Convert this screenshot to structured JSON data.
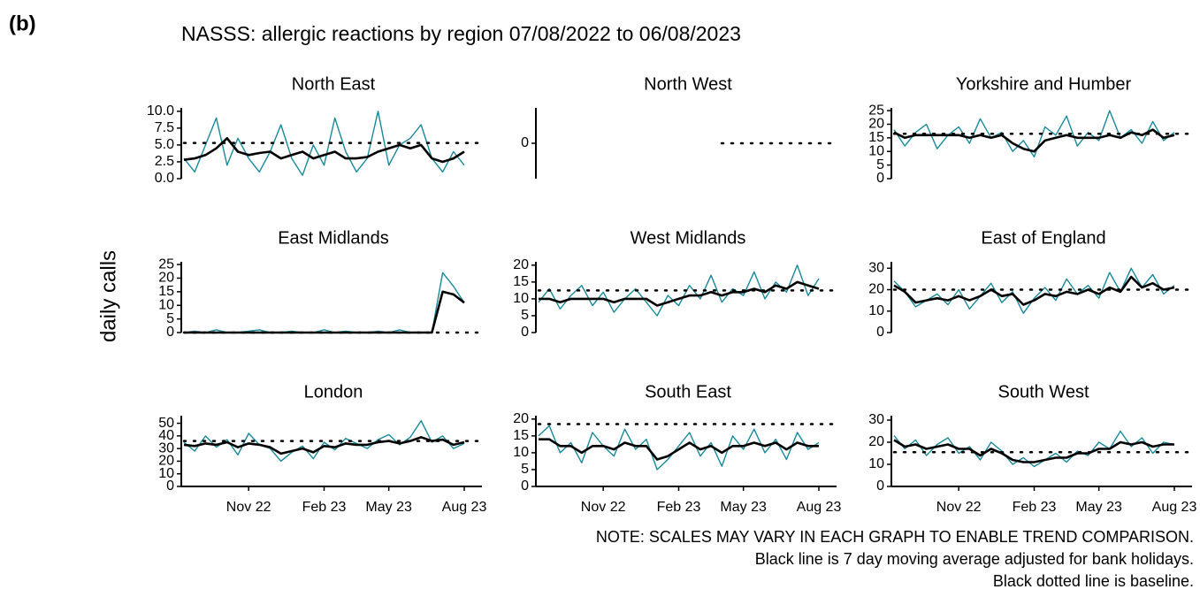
{
  "chart_data": {
    "type": "line",
    "label": "(b)",
    "title": "NASSS: allergic reactions by region 07/08/2022 to 06/08/2023",
    "ylabel": "daily calls",
    "categories": [
      null,
      null,
      null,
      null,
      null,
      null,
      "Nov 22",
      null,
      null,
      null,
      null,
      null,
      null,
      "Feb 23",
      null,
      null,
      null,
      null,
      null,
      "May 23",
      null,
      null,
      null,
      null,
      null,
      null,
      "Aug 23"
    ],
    "notes": [
      "NOTE: SCALES MAY VARY IN EACH GRAPH TO ENABLE TREND COMPARISON.",
      "Black line is 7 day moving average adjusted for bank holidays.",
      "Black dotted line is baseline."
    ],
    "panels": [
      {
        "title": "North East",
        "ylim": [
          0,
          10.5
        ],
        "yticks": [
          {
            "value": 0,
            "label": "0.0"
          },
          2.5,
          {
            "value": 5,
            "label": "5.0"
          },
          7.5,
          {
            "value": 10,
            "label": "10.0"
          }
        ],
        "baseline": 5.3,
        "series": [
          {
            "color": "#17899a",
            "values": [
              3,
              1,
              5,
              9,
              2,
              6,
              3,
              1,
              4,
              8,
              3,
              0.5,
              5,
              2,
              9,
              4,
              1,
              3,
              10,
              2,
              5,
              6,
              8,
              3,
              1,
              4,
              2
            ]
          },
          {
            "color": "#000000",
            "values": [
              2.8,
              3,
              3.5,
              4.5,
              6,
              4,
              3.5,
              3.8,
              4,
              3,
              3.5,
              4,
              3,
              3.5,
              4,
              3,
              3,
              3.2,
              4,
              4.5,
              5,
              4.5,
              5,
              3,
              2.5,
              3,
              4
            ]
          }
        ]
      },
      {
        "title": "North West",
        "ylim": [
          -1,
          1
        ],
        "yticks": [
          0
        ],
        "baseline": 0,
        "series": []
      },
      {
        "title": "Yorkshire and Humber",
        "ylim": [
          0,
          26
        ],
        "yticks": [
          0,
          5,
          10,
          15,
          20,
          25
        ],
        "baseline": 16.5,
        "series": [
          {
            "color": "#17899a",
            "values": [
              18,
              12,
              17,
              20,
              11,
              16,
              19,
              13,
              22,
              15,
              17,
              10,
              14,
              8,
              19,
              16,
              23,
              12,
              17,
              14,
              25,
              15,
              18,
              13,
              21,
              14,
              17
            ]
          },
          {
            "color": "#000000",
            "values": [
              17,
              15,
              16,
              16,
              16,
              16,
              16,
              15,
              16,
              15,
              16,
              13,
              11,
              10,
              14,
              15,
              16,
              15,
              15,
              15,
              16,
              15,
              17,
              16,
              18,
              15,
              16
            ]
          }
        ]
      },
      {
        "title": "East Midlands",
        "ylim": [
          0,
          26
        ],
        "yticks": [
          0,
          5,
          10,
          15,
          20,
          25
        ],
        "baseline": 0,
        "series": [
          {
            "color": "#17899a",
            "values": [
              0,
              0.5,
              0,
              1,
              0,
              0,
              0.5,
              1,
              0,
              0,
              0.5,
              0,
              0,
              1,
              0,
              0.5,
              0,
              0,
              0.5,
              0,
              1,
              0,
              0,
              0,
              22,
              17,
              11
            ]
          },
          {
            "color": "#000000",
            "values": [
              0,
              0,
              0,
              0,
              0,
              0,
              0,
              0,
              0,
              0,
              0,
              0,
              0,
              0,
              0,
              0,
              0,
              0,
              0,
              0,
              0,
              0,
              0,
              0,
              15,
              14,
              11
            ]
          }
        ]
      },
      {
        "title": "West Midlands",
        "ylim": [
          0,
          21
        ],
        "yticks": [
          0,
          5,
          10,
          15,
          20
        ],
        "baseline": 12.5,
        "series": [
          {
            "color": "#17899a",
            "values": [
              9,
              13,
              7,
              11,
              14,
              8,
              12,
              6,
              10,
              13,
              9,
              5,
              11,
              8,
              14,
              10,
              17,
              9,
              13,
              11,
              18,
              10,
              15,
              12,
              20,
              11,
              16
            ]
          },
          {
            "color": "#000000",
            "values": [
              10,
              10,
              9,
              10,
              10,
              10,
              10,
              9,
              10,
              10,
              10,
              8,
              9,
              10,
              11,
              11,
              12,
              11,
              12,
              12,
              13,
              12,
              14,
              13,
              15,
              14,
              13
            ]
          }
        ]
      },
      {
        "title": "East of England",
        "ylim": [
          0,
          33
        ],
        "yticks": [
          0,
          10,
          20,
          30
        ],
        "baseline": 20,
        "series": [
          {
            "color": "#17899a",
            "values": [
              24,
              19,
              12,
              15,
              18,
              13,
              20,
              11,
              17,
              23,
              14,
              19,
              9,
              16,
              21,
              15,
              25,
              18,
              22,
              16,
              28,
              19,
              30,
              21,
              27,
              18,
              22
            ]
          },
          {
            "color": "#000000",
            "values": [
              22,
              19,
              14,
              15,
              16,
              15,
              17,
              15,
              17,
              20,
              17,
              18,
              13,
              15,
              18,
              17,
              19,
              18,
              20,
              18,
              21,
              19,
              26,
              21,
              23,
              20,
              21
            ]
          }
        ]
      },
      {
        "title": "London",
        "ylim": [
          0,
          56
        ],
        "yticks": [
          0,
          10,
          20,
          30,
          40,
          50
        ],
        "baseline": 36,
        "series": [
          {
            "color": "#17899a",
            "values": [
              35,
              28,
              40,
              31,
              37,
              25,
              42,
              33,
              30,
              20,
              27,
              32,
              22,
              35,
              29,
              38,
              34,
              30,
              37,
              41,
              33,
              39,
              52,
              35,
              40,
              30,
              34
            ]
          },
          {
            "color": "#000000",
            "values": [
              33,
              32,
              34,
              33,
              35,
              31,
              34,
              33,
              31,
              26,
              28,
              30,
              27,
              32,
              31,
              34,
              33,
              33,
              35,
              36,
              34,
              36,
              39,
              36,
              37,
              33,
              35
            ]
          }
        ]
      },
      {
        "title": "South East",
        "ylim": [
          0,
          21
        ],
        "yticks": [
          0,
          5,
          10,
          15,
          20
        ],
        "baseline": 18.5,
        "series": [
          {
            "color": "#17899a",
            "values": [
              15,
              18,
              10,
              13,
              7,
              16,
              12,
              9,
              17,
              11,
              14,
              5,
              8,
              12,
              16,
              9,
              13,
              6,
              15,
              11,
              17,
              10,
              14,
              8,
              16,
              11,
              13
            ]
          },
          {
            "color": "#000000",
            "values": [
              14,
              14,
              12,
              12,
              10,
              12,
              12,
              11,
              13,
              12,
              12,
              8,
              9,
              11,
              13,
              11,
              12,
              10,
              12,
              12,
              13,
              12,
              13,
              11,
              13,
              12,
              12
            ]
          }
        ]
      },
      {
        "title": "South West",
        "ylim": [
          0,
          32
        ],
        "yticks": [
          0,
          10,
          20,
          30
        ],
        "baseline": 15.5,
        "series": [
          {
            "color": "#17899a",
            "values": [
              23,
              17,
              21,
              14,
              19,
              22,
              15,
              18,
              12,
              20,
              16,
              10,
              13,
              9,
              12,
              15,
              11,
              16,
              14,
              20,
              17,
              25,
              18,
              22,
              15,
              20,
              19
            ]
          },
          {
            "color": "#000000",
            "values": [
              21,
              18,
              19,
              17,
              18,
              19,
              17,
              17,
              14,
              17,
              15,
              12,
              11,
              11,
              12,
              13,
              13,
              15,
              15,
              17,
              17,
              20,
              19,
              20,
              18,
              19,
              19
            ]
          }
        ]
      }
    ]
  }
}
